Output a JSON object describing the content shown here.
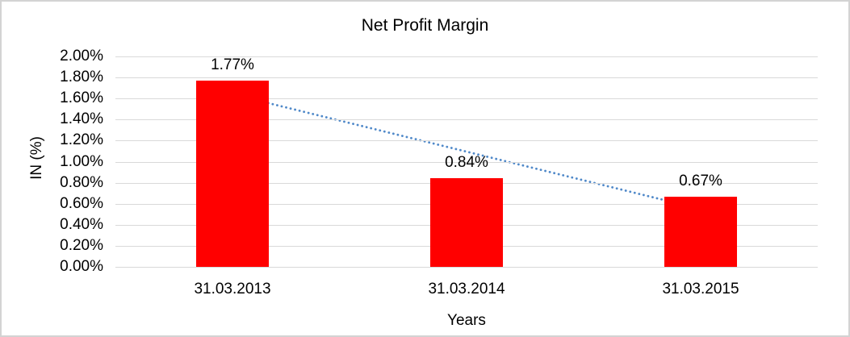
{
  "chart_data": {
    "type": "bar",
    "title": "Net Profit Margin",
    "xlabel": "Years",
    "ylabel": "IN (%)",
    "categories": [
      "31.03.2013",
      "31.03.2014",
      "31.03.2015"
    ],
    "values": [
      1.77,
      0.84,
      0.67
    ],
    "value_labels": [
      "1.77%",
      "0.84%",
      "0.67%"
    ],
    "ylim": [
      0,
      2.0
    ],
    "ytick_step": 0.2,
    "ytick_labels": [
      "0.00%",
      "0.20%",
      "0.40%",
      "0.60%",
      "0.80%",
      "1.00%",
      "1.20%",
      "1.40%",
      "1.60%",
      "1.80%",
      "2.00%"
    ],
    "grid": true,
    "legend": "none",
    "colors": {
      "bar": "#ff0000",
      "gridline": "#d9d9d9",
      "border": "#d3d3d3",
      "text": "#000000",
      "trendline": "#5089c9"
    },
    "trendline": {
      "style": "dotted",
      "color": "#5089c9",
      "start": {
        "category": "31.03.2013",
        "value": 1.64
      },
      "end": {
        "category": "31.03.2015",
        "value": 0.55
      }
    }
  }
}
